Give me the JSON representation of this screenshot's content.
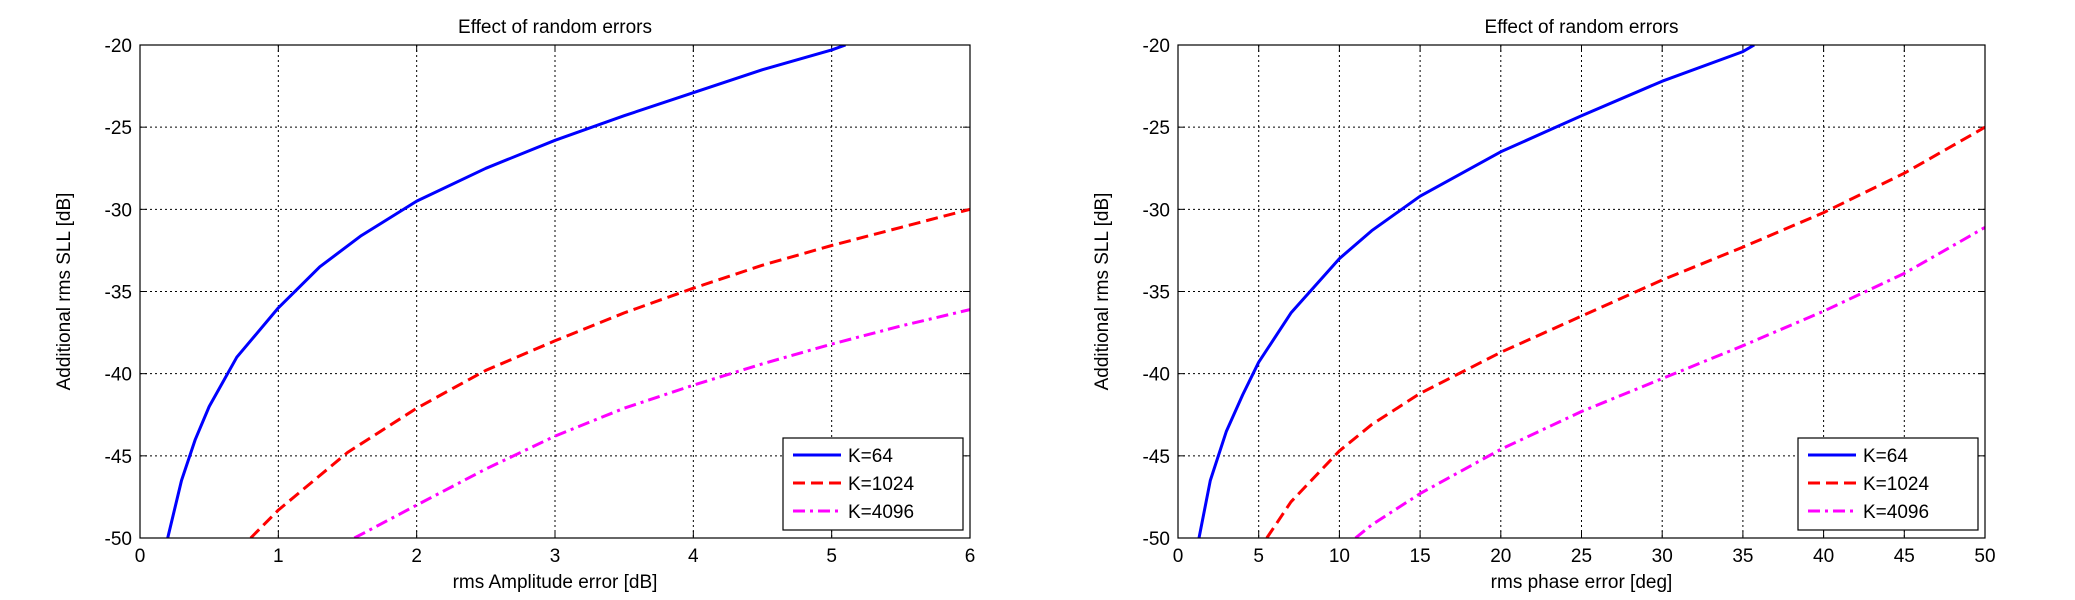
{
  "chart_data": [
    {
      "type": "line",
      "title": "Effect of random errors",
      "xlabel": "rms Amplitude error [dB]",
      "ylabel": "Additional rms SLL [dB]",
      "xlim": [
        0,
        6
      ],
      "ylim": [
        -50,
        -20
      ],
      "xticks": [
        0,
        1,
        2,
        3,
        4,
        5,
        6
      ],
      "yticks": [
        -20,
        -25,
        -30,
        -35,
        -40,
        -45,
        -50
      ],
      "grid": true,
      "legend_position": "bottom-right",
      "series": [
        {
          "name": "K=64",
          "color": "#0000ff",
          "style": "solid",
          "x": [
            0.2,
            0.3,
            0.4,
            0.5,
            0.7,
            1.0,
            1.3,
            1.6,
            2.0,
            2.5,
            3.0,
            3.5,
            4.0,
            4.5,
            5.0,
            5.1
          ],
          "y": [
            -50,
            -46.5,
            -44,
            -42,
            -39,
            -36,
            -33.5,
            -31.6,
            -29.5,
            -27.5,
            -25.8,
            -24.3,
            -22.9,
            -21.5,
            -20.3,
            -20
          ]
        },
        {
          "name": "K=1024",
          "color": "#ff0000",
          "style": "dashed",
          "x": [
            0.8,
            1.0,
            1.5,
            2.0,
            2.5,
            3.0,
            3.5,
            4.0,
            4.5,
            5.0,
            5.5,
            6.0
          ],
          "y": [
            -50,
            -48.3,
            -44.8,
            -42.1,
            -39.8,
            -38,
            -36.3,
            -34.8,
            -33.4,
            -32.2,
            -31.1,
            -30
          ]
        },
        {
          "name": "K=4096",
          "color": "#ff00ff",
          "style": "dash-dot",
          "x": [
            1.55,
            2.0,
            2.5,
            3.0,
            3.5,
            4.0,
            4.5,
            5.0,
            5.5,
            6.0
          ],
          "y": [
            -50,
            -48,
            -45.8,
            -43.8,
            -42.1,
            -40.7,
            -39.4,
            -38.2,
            -37.1,
            -36.1
          ]
        }
      ]
    },
    {
      "type": "line",
      "title": "Effect of random errors",
      "xlabel": "rms phase error [deg]",
      "ylabel": "Additional rms SLL [dB]",
      "xlim": [
        0,
        50
      ],
      "ylim": [
        -50,
        -20
      ],
      "xticks": [
        0,
        5,
        10,
        15,
        20,
        25,
        30,
        35,
        40,
        45,
        50
      ],
      "yticks": [
        -20,
        -25,
        -30,
        -35,
        -40,
        -45,
        -50
      ],
      "grid": true,
      "legend_position": "bottom-right",
      "series": [
        {
          "name": "K=64",
          "color": "#0000ff",
          "style": "solid",
          "x": [
            1.3,
            2,
            3,
            4,
            5,
            7,
            10,
            12,
            15,
            20,
            25,
            30,
            35,
            35.7
          ],
          "y": [
            -50,
            -46.5,
            -43.5,
            -41.3,
            -39.3,
            -36.3,
            -33,
            -31.3,
            -29.2,
            -26.5,
            -24.3,
            -22.2,
            -20.4,
            -20
          ]
        },
        {
          "name": "K=1024",
          "color": "#ff0000",
          "style": "dashed",
          "x": [
            5.5,
            7,
            10,
            12,
            15,
            20,
            25,
            30,
            35,
            40,
            45,
            50
          ],
          "y": [
            -50,
            -47.8,
            -44.7,
            -43.1,
            -41.2,
            -38.7,
            -36.5,
            -34.3,
            -32.3,
            -30.2,
            -27.8,
            -25
          ]
        },
        {
          "name": "K=4096",
          "color": "#ff00ff",
          "style": "dash-dot",
          "x": [
            11,
            12,
            15,
            20,
            25,
            30,
            35,
            40,
            45,
            50
          ],
          "y": [
            -50,
            -49.2,
            -47.3,
            -44.6,
            -42.3,
            -40.3,
            -38.3,
            -36.2,
            -33.9,
            -31.1
          ]
        }
      ]
    }
  ]
}
